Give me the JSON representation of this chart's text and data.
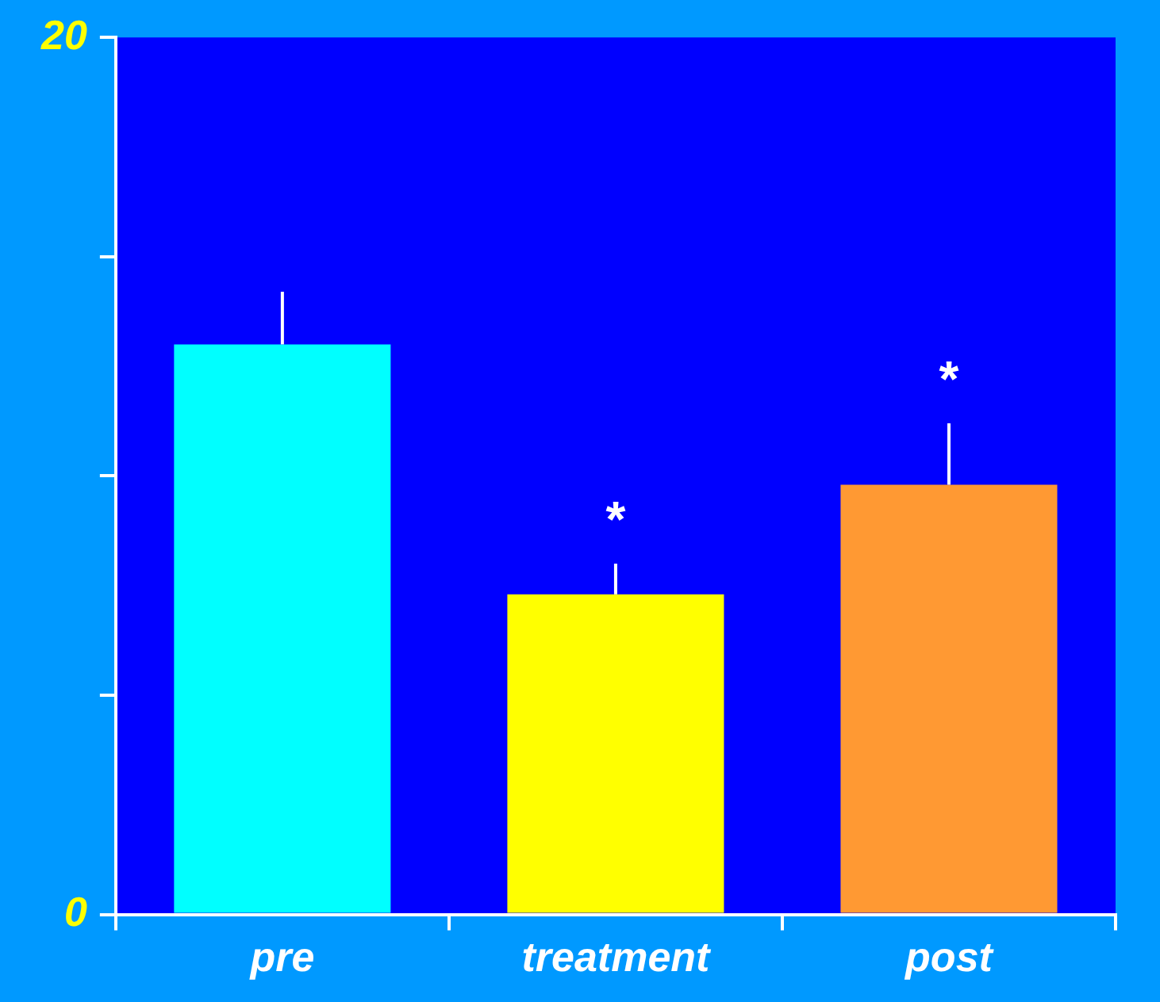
{
  "chart_data": {
    "type": "bar",
    "categories": [
      "pre",
      "treatment",
      "post"
    ],
    "values": [
      13,
      7.3,
      9.8
    ],
    "colors": [
      "#00ffff",
      "#ffff00",
      "#ff9933"
    ],
    "errors": [
      [
        13,
        14.2
      ],
      [
        7.3,
        8.0
      ],
      [
        9.8,
        11.2
      ]
    ],
    "ylim": [
      0,
      20
    ],
    "yticks": [
      0,
      {
        "value": 5,
        "label": null
      },
      {
        "value": 10,
        "label": null
      },
      {
        "value": 15,
        "label": null
      },
      20
    ],
    "annotations": [
      {
        "text": "*",
        "x": "treatment",
        "y": 8.0
      },
      {
        "text": "*",
        "x": "post",
        "y": 11.2
      }
    ],
    "grid": false,
    "legend": false
  }
}
